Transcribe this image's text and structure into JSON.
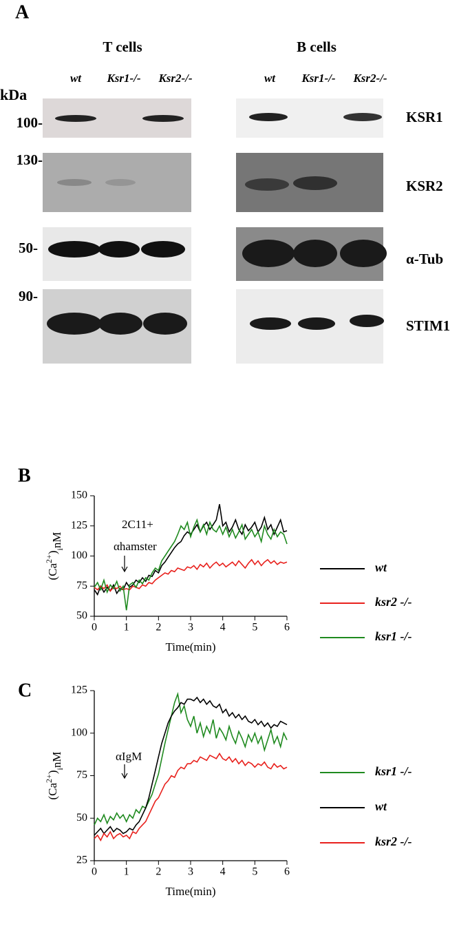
{
  "panel_a": {
    "label": "A",
    "groups": [
      {
        "name": "T cells",
        "lanes": [
          "wt",
          "Ksr1-/-",
          "Ksr2-/-"
        ]
      },
      {
        "name": "B cells",
        "lanes": [
          "wt",
          "Ksr1-/-",
          "Ksr2-/-"
        ]
      }
    ],
    "unit": "kDa",
    "markers": [
      "100-",
      "130-",
      "50-",
      "90-"
    ],
    "proteins": [
      "KSR1",
      "KSR2",
      "α-Tub",
      "STIM1"
    ]
  },
  "chart_data": [
    {
      "type": "line",
      "label": "B",
      "xlabel": "Time(min)",
      "ylabel_parts": [
        "(Ca",
        "2+",
        ")",
        "i",
        "nM"
      ],
      "annotations": [
        "2C11+",
        "αhamster"
      ],
      "x": [
        0,
        0.1,
        0.2,
        0.3,
        0.4,
        0.5,
        0.6,
        0.7,
        0.8,
        0.9,
        1,
        1.1,
        1.2,
        1.3,
        1.4,
        1.5,
        1.6,
        1.7,
        1.8,
        1.9,
        2,
        2.1,
        2.2,
        2.3,
        2.4,
        2.5,
        2.6,
        2.7,
        2.8,
        2.9,
        3,
        3.1,
        3.2,
        3.3,
        3.4,
        3.5,
        3.6,
        3.7,
        3.8,
        3.9,
        4,
        4.1,
        4.2,
        4.3,
        4.4,
        4.5,
        4.6,
        4.7,
        4.8,
        4.9,
        5,
        5.1,
        5.2,
        5.3,
        5.4,
        5.5,
        5.6,
        5.7,
        5.8,
        5.9,
        6
      ],
      "xlim": [
        0,
        6
      ],
      "xticks": [
        0,
        1,
        2,
        3,
        4,
        5,
        6
      ],
      "ylim": [
        50,
        150
      ],
      "yticks": [
        50,
        75,
        100,
        125,
        150
      ],
      "legend": "right",
      "series": [
        {
          "name": "wt",
          "color": "#000000",
          "values": [
            72,
            68,
            75,
            70,
            74,
            71,
            76,
            69,
            73,
            72,
            78,
            74,
            76,
            80,
            78,
            82,
            79,
            84,
            83,
            88,
            86,
            92,
            95,
            99,
            103,
            107,
            110,
            112,
            117,
            120,
            118,
            122,
            126,
            120,
            125,
            128,
            122,
            126,
            130,
            143,
            125,
            128,
            120,
            124,
            130,
            122,
            118,
            126,
            121,
            124,
            128,
            120,
            124,
            132,
            122,
            126,
            118,
            124,
            130,
            120,
            121
          ]
        },
        {
          "name": "ksr2 -/-",
          "color": "#e8201c",
          "values": [
            74,
            72,
            75,
            73,
            76,
            71,
            74,
            73,
            75,
            72,
            73,
            72,
            75,
            74,
            73,
            76,
            75,
            78,
            77,
            80,
            82,
            84,
            86,
            85,
            88,
            87,
            90,
            89,
            88,
            91,
            90,
            92,
            89,
            93,
            91,
            94,
            90,
            93,
            95,
            92,
            94,
            91,
            93,
            95,
            92,
            96,
            93,
            90,
            94,
            97,
            93,
            96,
            92,
            95,
            97,
            94,
            96,
            93,
            95,
            94,
            95
          ]
        },
        {
          "name": "ksr1 -/-",
          "color": "#1f8a1f",
          "values": [
            74,
            78,
            72,
            80,
            70,
            76,
            73,
            79,
            71,
            75,
            55,
            76,
            78,
            74,
            80,
            77,
            82,
            80,
            86,
            90,
            88,
            96,
            100,
            104,
            108,
            112,
            118,
            125,
            122,
            128,
            116,
            124,
            130,
            120,
            126,
            118,
            128,
            122,
            120,
            125,
            118,
            124,
            116,
            122,
            115,
            120,
            126,
            114,
            118,
            122,
            116,
            120,
            112,
            125,
            118,
            114,
            122,
            116,
            120,
            118,
            110
          ]
        }
      ]
    },
    {
      "type": "line",
      "label": "C",
      "xlabel": "Time(min)",
      "ylabel_parts": [
        "(Ca",
        "2+",
        ")",
        "i",
        "nM"
      ],
      "annotations": [
        "αIgM"
      ],
      "x": [
        0,
        0.1,
        0.2,
        0.3,
        0.4,
        0.5,
        0.6,
        0.7,
        0.8,
        0.9,
        1,
        1.1,
        1.2,
        1.3,
        1.4,
        1.5,
        1.6,
        1.7,
        1.8,
        1.9,
        2,
        2.1,
        2.2,
        2.3,
        2.4,
        2.5,
        2.6,
        2.7,
        2.8,
        2.9,
        3,
        3.1,
        3.2,
        3.3,
        3.4,
        3.5,
        3.6,
        3.7,
        3.8,
        3.9,
        4,
        4.1,
        4.2,
        4.3,
        4.4,
        4.5,
        4.6,
        4.7,
        4.8,
        4.9,
        5,
        5.1,
        5.2,
        5.3,
        5.4,
        5.5,
        5.6,
        5.7,
        5.8,
        5.9,
        6
      ],
      "xlim": [
        0,
        6
      ],
      "xticks": [
        0,
        1,
        2,
        3,
        4,
        5,
        6
      ],
      "ylim": [
        25,
        125
      ],
      "yticks": [
        25,
        50,
        75,
        100,
        125
      ],
      "legend": "right",
      "series": [
        {
          "name": "ksr1 -/-",
          "color": "#1f8a1f",
          "values": [
            46,
            50,
            48,
            52,
            47,
            51,
            49,
            53,
            50,
            52,
            48,
            52,
            50,
            55,
            53,
            57,
            56,
            60,
            64,
            70,
            76,
            85,
            94,
            102,
            110,
            118,
            123,
            112,
            116,
            108,
            104,
            110,
            100,
            106,
            98,
            104,
            100,
            108,
            97,
            103,
            100,
            96,
            104,
            98,
            94,
            101,
            97,
            92,
            99,
            95,
            100,
            94,
            98,
            90,
            96,
            102,
            94,
            98,
            92,
            100,
            96
          ]
        },
        {
          "name": "wt",
          "color": "#000000",
          "values": [
            40,
            42,
            44,
            41,
            43,
            45,
            42,
            44,
            43,
            41,
            42,
            44,
            43,
            46,
            48,
            52,
            56,
            62,
            70,
            78,
            86,
            94,
            100,
            106,
            110,
            113,
            115,
            118,
            117,
            120,
            120,
            119,
            121,
            118,
            120,
            117,
            119,
            116,
            115,
            117,
            112,
            114,
            110,
            112,
            109,
            111,
            108,
            110,
            107,
            106,
            108,
            105,
            107,
            104,
            106,
            103,
            105,
            104,
            107,
            106,
            105
          ]
        },
        {
          "name": "ksr2 -/-",
          "color": "#e8201c",
          "values": [
            38,
            40,
            37,
            41,
            39,
            42,
            38,
            40,
            41,
            39,
            40,
            38,
            42,
            41,
            44,
            46,
            48,
            52,
            56,
            60,
            62,
            66,
            70,
            72,
            75,
            74,
            78,
            80,
            79,
            82,
            82,
            84,
            83,
            86,
            85,
            84,
            87,
            86,
            85,
            88,
            85,
            84,
            86,
            83,
            85,
            82,
            84,
            81,
            83,
            82,
            80,
            82,
            81,
            83,
            80,
            79,
            82,
            80,
            81,
            79,
            80
          ]
        }
      ]
    }
  ]
}
